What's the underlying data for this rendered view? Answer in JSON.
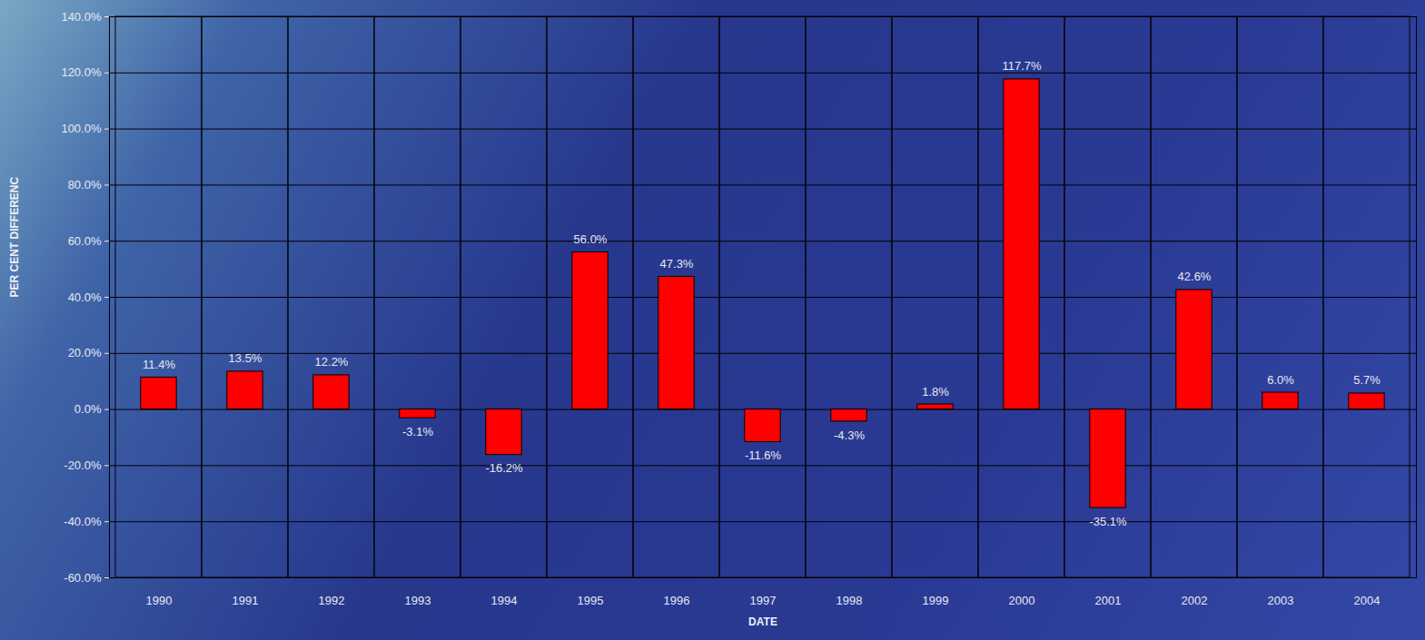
{
  "chart_data": {
    "type": "bar",
    "categories": [
      "1990",
      "1991",
      "1992",
      "1993",
      "1994",
      "1995",
      "1996",
      "1997",
      "1998",
      "1999",
      "2000",
      "2001",
      "2002",
      "2003",
      "2004"
    ],
    "values": [
      11.4,
      13.5,
      12.2,
      -3.1,
      -16.2,
      56.0,
      47.3,
      -11.6,
      -4.3,
      1.8,
      117.7,
      -35.1,
      42.6,
      6.0,
      5.7
    ],
    "value_labels": [
      "11.4%",
      "13.5%",
      "12.2%",
      "-3.1%",
      "-16.2%",
      "56.0%",
      "47.3%",
      "-11.6%",
      "-4.3%",
      "1.8%",
      "117.7%",
      "-35.1%",
      "42.6%",
      "6.0%",
      "5.7%"
    ],
    "color": "#ff0000",
    "xlabel": "DATE",
    "ylabel": "PER CENT DIFFERENC",
    "ylim": [
      -60,
      140
    ],
    "yticks": [
      {
        "value": -60,
        "label": "-60.0%"
      },
      {
        "value": -40,
        "label": "-40.0%"
      },
      {
        "value": -20,
        "label": "-20.0%"
      },
      {
        "value": 0,
        "label": "0.0%"
      },
      {
        "value": 20,
        "label": "20.0%"
      },
      {
        "value": 40,
        "label": "40.0%"
      },
      {
        "value": 60,
        "label": "60.0%"
      },
      {
        "value": 80,
        "label": "80.0%"
      },
      {
        "value": 100,
        "label": "100.0%"
      },
      {
        "value": 120,
        "label": "120.0%"
      },
      {
        "value": 140,
        "label": "140.0%"
      }
    ],
    "grid": true,
    "data_labels": true
  }
}
